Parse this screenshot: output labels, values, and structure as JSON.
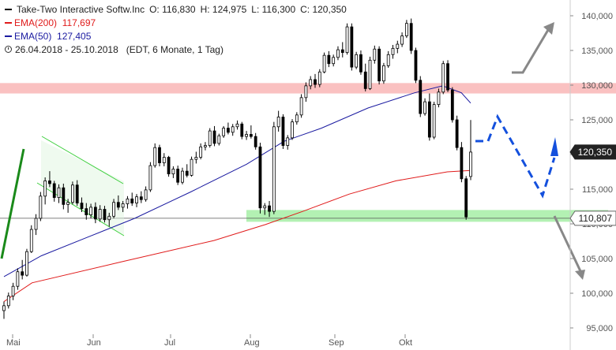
{
  "legend": {
    "title": "Take-Two Interactive Softw.Inc",
    "open": "O: 116,830",
    "high": "H: 124,975",
    "low": "L: 116,300",
    "close": "C: 120,350",
    "ema200_label": "EMA(200)",
    "ema200_value": "117,697",
    "ema50_label": "EMA(50)",
    "ema50_value": "127,405",
    "range": "26.04.2018 - 25.10.2018",
    "range_info": "(EDT, 6 Monate, 1 Tag)"
  },
  "colors": {
    "ema200": "#e01b1b",
    "ema50": "#1a1aa0",
    "up": "#ffffff",
    "down": "#000000",
    "resistance_zone": "#f9b6b6",
    "support_zone": "#a6eea6",
    "trend_up": "#1a8a1a",
    "forecast": "#1450dd",
    "arrow_gray": "#808080",
    "channel": "#2ecc40"
  },
  "chart_data": {
    "type": "candlestick",
    "x_range": [
      "2018-04-26",
      "2018-10-25"
    ],
    "x_ticks": [
      "Mai",
      "Jun",
      "Jul",
      "Aug",
      "Sep",
      "Okt"
    ],
    "y_range": [
      94500,
      142500
    ],
    "y_ticks": [
      "95,000",
      "100,000",
      "105,000",
      "110,000",
      "115,000",
      "120,000",
      "125,000",
      "130,000",
      "135,000",
      "140,000"
    ],
    "y_tick_values": [
      95000,
      100000,
      105000,
      110000,
      115000,
      120000,
      125000,
      130000,
      135000,
      140000
    ],
    "price_tags": [
      {
        "label": "120,350",
        "value": 120350,
        "style": "dark"
      },
      {
        "label": "110,807",
        "value": 110807,
        "style": "light"
      }
    ],
    "horizontal_line": 110807,
    "zones": [
      {
        "name": "resistance",
        "from": 128800,
        "to": 130300
      },
      {
        "name": "support",
        "from": 110300,
        "to": 112000
      }
    ],
    "ohlc": [
      [
        97500,
        98800,
        96300,
        98200
      ],
      [
        98200,
        100100,
        97800,
        99600
      ],
      [
        99600,
        101500,
        99000,
        101000
      ],
      [
        101000,
        103600,
        100500,
        103100
      ],
      [
        103100,
        104800,
        102000,
        102600
      ],
      [
        102600,
        106400,
        102400,
        106000
      ],
      [
        106000,
        109800,
        105800,
        109200
      ],
      [
        109200,
        111400,
        108400,
        110800
      ],
      [
        110800,
        114600,
        110400,
        114000
      ],
      [
        114000,
        116700,
        112800,
        116200
      ],
      [
        116200,
        117600,
        115300,
        115800
      ],
      [
        115800,
        116200,
        113200,
        113800
      ],
      [
        113800,
        115700,
        113000,
        115200
      ],
      [
        115200,
        115800,
        112100,
        112800
      ],
      [
        112800,
        113600,
        111600,
        113100
      ],
      [
        113100,
        116100,
        112800,
        115600
      ],
      [
        115600,
        116300,
        112600,
        113000
      ],
      [
        113000,
        113800,
        111700,
        112200
      ],
      [
        112200,
        113000,
        110600,
        111300
      ],
      [
        111300,
        112900,
        110800,
        112400
      ],
      [
        112400,
        113100,
        110100,
        110700
      ],
      [
        110700,
        112700,
        110300,
        112100
      ],
      [
        112100,
        112600,
        110200,
        110600
      ],
      [
        110600,
        111600,
        109600,
        111100
      ],
      [
        111100,
        113600,
        110800,
        113100
      ],
      [
        113100,
        114100,
        112000,
        112400
      ],
      [
        112400,
        113300,
        111700,
        112900
      ],
      [
        112900,
        114000,
        112200,
        113600
      ],
      [
        113600,
        114500,
        112600,
        113000
      ],
      [
        113000,
        114300,
        112400,
        113900
      ],
      [
        113900,
        114700,
        113000,
        113500
      ],
      [
        113500,
        115400,
        113200,
        114900
      ],
      [
        114900,
        118900,
        114600,
        118400
      ],
      [
        118400,
        121600,
        118100,
        121000
      ],
      [
        121000,
        121400,
        118300,
        118800
      ],
      [
        118800,
        120200,
        118300,
        119600
      ],
      [
        119600,
        119800,
        116800,
        117200
      ],
      [
        117200,
        118300,
        116600,
        117900
      ],
      [
        117900,
        118400,
        115600,
        116000
      ],
      [
        116000,
        118100,
        115700,
        117600
      ],
      [
        117600,
        118600,
        116700,
        117000
      ],
      [
        117000,
        119700,
        116800,
        119300
      ],
      [
        119300,
        120400,
        118700,
        119600
      ],
      [
        119600,
        121600,
        119300,
        121100
      ],
      [
        121100,
        121800,
        120600,
        121300
      ],
      [
        121300,
        123800,
        121000,
        123400
      ],
      [
        123400,
        124100,
        121200,
        121600
      ],
      [
        121600,
        123000,
        121300,
        122700
      ],
      [
        122700,
        124100,
        122400,
        123800
      ],
      [
        123800,
        124600,
        122900,
        123200
      ],
      [
        123200,
        124400,
        122700,
        124000
      ],
      [
        124000,
        124900,
        123600,
        124400
      ],
      [
        124400,
        124700,
        122200,
        122600
      ],
      [
        122600,
        123400,
        122100,
        122900
      ],
      [
        122900,
        124200,
        122300,
        122600
      ],
      [
        122600,
        123100,
        120700,
        121100
      ],
      [
        121100,
        121700,
        111500,
        112300
      ],
      [
        112300,
        113000,
        111300,
        112600
      ],
      [
        112600,
        113300,
        111000,
        111800
      ],
      [
        111800,
        124700,
        111400,
        124000
      ],
      [
        124000,
        126300,
        123300,
        125400
      ],
      [
        125400,
        125800,
        120800,
        121300
      ],
      [
        121300,
        122800,
        120700,
        122400
      ],
      [
        122400,
        125100,
        122100,
        124700
      ],
      [
        124700,
        126100,
        124300,
        125700
      ],
      [
        125700,
        128700,
        125300,
        128200
      ],
      [
        128200,
        130400,
        127600,
        129900
      ],
      [
        129900,
        131300,
        129400,
        130800
      ],
      [
        130800,
        131600,
        129600,
        130100
      ],
      [
        130100,
        132300,
        129700,
        131900
      ],
      [
        131900,
        134700,
        131700,
        134300
      ],
      [
        134300,
        134900,
        132600,
        133100
      ],
      [
        133100,
        134400,
        132700,
        134000
      ],
      [
        134000,
        135600,
        133600,
        135100
      ],
      [
        135100,
        136200,
        134000,
        134700
      ],
      [
        134700,
        138900,
        134400,
        138400
      ],
      [
        138400,
        138900,
        132100,
        132600
      ],
      [
        132600,
        134800,
        132300,
        134400
      ],
      [
        134400,
        135000,
        131500,
        131900
      ],
      [
        131900,
        133100,
        129100,
        129500
      ],
      [
        129500,
        134100,
        129300,
        133600
      ],
      [
        133600,
        135700,
        133100,
        135200
      ],
      [
        135200,
        135600,
        130100,
        130600
      ],
      [
        130600,
        133200,
        130200,
        132800
      ],
      [
        132800,
        134900,
        132500,
        134400
      ],
      [
        134400,
        135800,
        133800,
        135300
      ],
      [
        135300,
        136400,
        134600,
        135900
      ],
      [
        135900,
        137600,
        135500,
        137100
      ],
      [
        137100,
        139400,
        136800,
        138900
      ],
      [
        138900,
        139600,
        134500,
        135000
      ],
      [
        135000,
        135400,
        130300,
        130700
      ],
      [
        130700,
        131300,
        125400,
        125900
      ],
      [
        125900,
        128100,
        125600,
        127600
      ],
      [
        127600,
        128800,
        122000,
        122500
      ],
      [
        122500,
        127600,
        122200,
        127200
      ],
      [
        127200,
        129500,
        126800,
        129000
      ],
      [
        129000,
        133500,
        128700,
        133100
      ],
      [
        133100,
        133600,
        129000,
        129300
      ],
      [
        129300,
        129700,
        124600,
        125000
      ],
      [
        125000,
        125600,
        120600,
        121000
      ],
      [
        121000,
        121800,
        116000,
        116500
      ],
      [
        116500,
        116900,
        110600,
        111000
      ],
      [
        116830,
        124975,
        116300,
        120350
      ]
    ],
    "ema200": [
      [
        0,
        98800
      ],
      [
        6,
        101500
      ],
      [
        25,
        104500
      ],
      [
        45,
        107600
      ],
      [
        56,
        109900
      ],
      [
        64,
        111800
      ],
      [
        74,
        114300
      ],
      [
        84,
        116200
      ],
      [
        95,
        117500
      ],
      [
        100,
        117697
      ]
    ],
    "ema50": [
      [
        0,
        102400
      ],
      [
        8,
        105400
      ],
      [
        18,
        108100
      ],
      [
        28,
        110800
      ],
      [
        40,
        114600
      ],
      [
        52,
        118600
      ],
      [
        60,
        121900
      ],
      [
        68,
        123800
      ],
      [
        78,
        126700
      ],
      [
        88,
        128900
      ],
      [
        94,
        129900
      ],
      [
        98,
        128900
      ],
      [
        100,
        127405
      ]
    ]
  }
}
